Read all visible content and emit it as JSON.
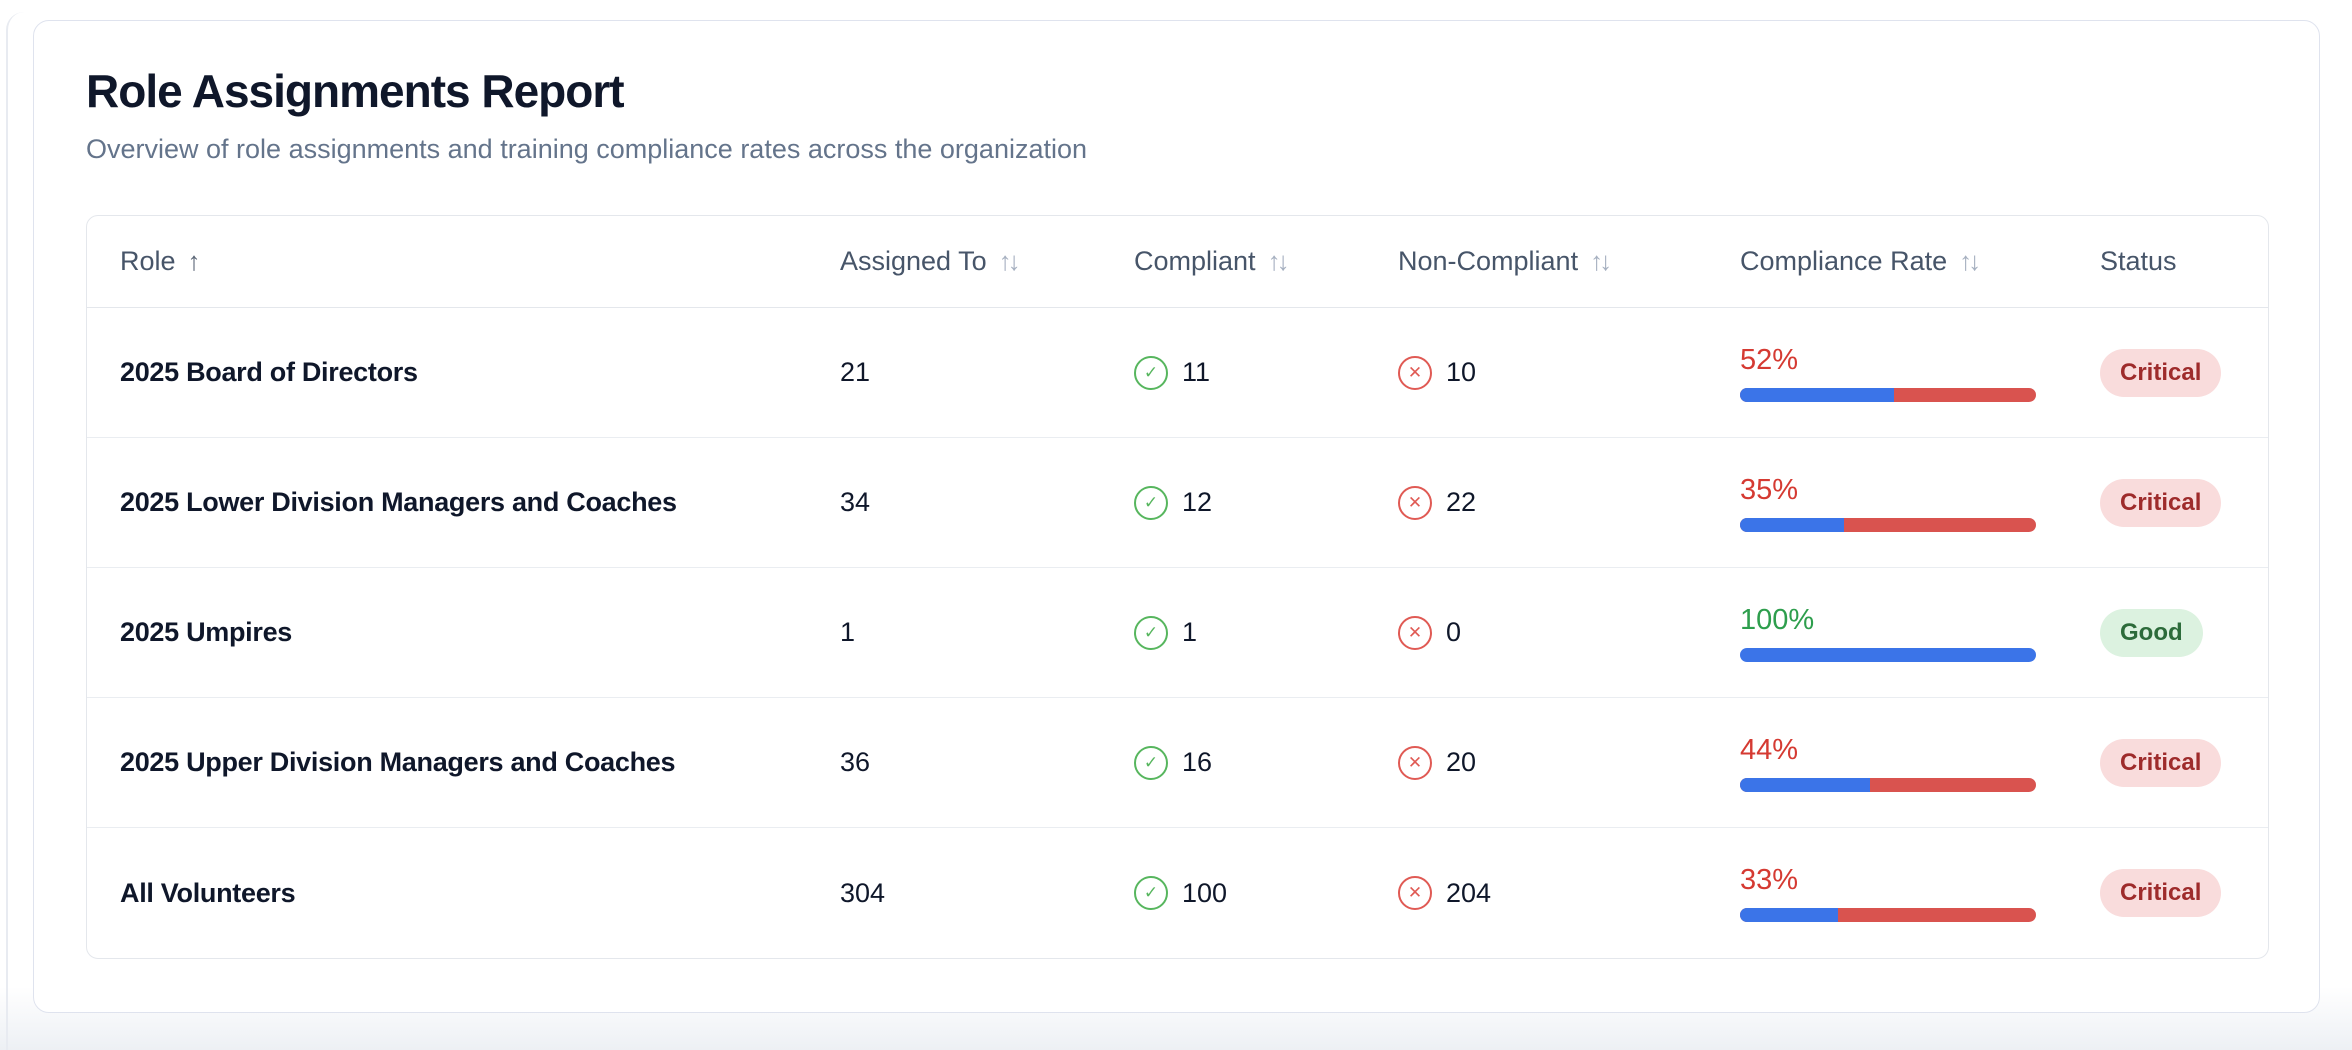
{
  "page": {
    "title": "Role Assignments Report",
    "subtitle": "Overview of role assignments and training compliance rates across the organization"
  },
  "table": {
    "sort_icons": {
      "asc": "↑",
      "both": "↑↓"
    },
    "columns": [
      {
        "label": "Role",
        "sort": "asc"
      },
      {
        "label": "Assigned To",
        "sort": "both"
      },
      {
        "label": "Compliant",
        "sort": "both"
      },
      {
        "label": "Non-Compliant",
        "sort": "both"
      },
      {
        "label": "Compliance Rate",
        "sort": "both"
      },
      {
        "label": "Status",
        "sort": "none"
      }
    ],
    "rows": [
      {
        "role": "2025 Board of Directors",
        "assigned": "21",
        "compliant": "11",
        "non_compliant": "10",
        "rate": "52%",
        "rate_value": 52,
        "status": "Critical"
      },
      {
        "role": "2025 Lower Division Managers and Coaches",
        "assigned": "34",
        "compliant": "12",
        "non_compliant": "22",
        "rate": "35%",
        "rate_value": 35,
        "status": "Critical"
      },
      {
        "role": "2025 Umpires",
        "assigned": "1",
        "compliant": "1",
        "non_compliant": "0",
        "rate": "100%",
        "rate_value": 100,
        "status": "Good"
      },
      {
        "role": "2025 Upper Division Managers and Coaches",
        "assigned": "36",
        "compliant": "16",
        "non_compliant": "20",
        "rate": "44%",
        "rate_value": 44,
        "status": "Critical"
      },
      {
        "role": "All Volunteers",
        "assigned": "304",
        "compliant": "100",
        "non_compliant": "204",
        "rate": "33%",
        "rate_value": 33,
        "status": "Critical"
      }
    ]
  },
  "icons": {
    "compliant_icon": "check-circle",
    "non_compliant_icon": "x-circle",
    "compliant_glyph": "✓",
    "non_compliant_glyph": "✕"
  },
  "colors": {
    "title_text": "#0f172a",
    "subtitle_text": "#64748b",
    "header_text": "#475569",
    "bar_blue": "#3b74e8",
    "bar_red": "#d9534f",
    "rate_red_text": "#d53a32",
    "rate_green_text": "#2e9e4d",
    "icon_green": "#57b65e",
    "icon_red": "#e05a54",
    "badge_critical_bg": "#f9dcdc",
    "badge_critical_text": "#9e2b2b",
    "badge_good_bg": "#dcf2e0",
    "badge_good_text": "#2c6b3a"
  }
}
